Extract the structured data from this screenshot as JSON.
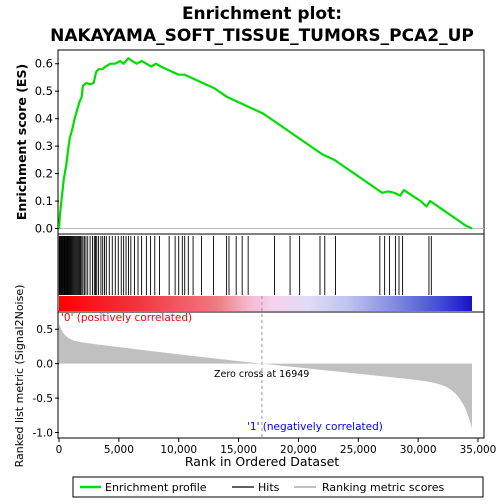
{
  "chart_data": {
    "type": "line",
    "title_line1": "Enrichment plot:",
    "title_line2": "NAKAYAMA_SOFT_TISSUE_TUMORS_PCA2_UP",
    "es_ylabel": "Enrichment score (ES)",
    "metric_ylabel": "Ranked list metric (Signal2Noise)",
    "xlabel": "Rank in Ordered Dataset",
    "xlim": [
      0,
      35500
    ],
    "es_ylim": [
      -0.02,
      0.65
    ],
    "metric_ylim": [
      -1.08,
      0.75
    ],
    "x_ticks": [
      0,
      5000,
      10000,
      15000,
      20000,
      25000,
      30000,
      35000
    ],
    "x_tick_labels": [
      "0",
      "5,000",
      "10,000",
      "15,000",
      "20,000",
      "25,000",
      "30,000",
      "35,000"
    ],
    "es_ticks": [
      0.0,
      0.1,
      0.2,
      0.3,
      0.4,
      0.5,
      0.6
    ],
    "es_tick_labels": [
      "0.0",
      "0.1",
      "0.2",
      "0.3",
      "0.4",
      "0.5",
      "0.6"
    ],
    "metric_ticks": [
      0.5,
      0.0,
      -0.5,
      -1.0
    ],
    "metric_tick_labels": [
      "0.5",
      "0.0",
      "-0.5",
      "-1.0"
    ],
    "total_genes": 34500,
    "zero_cross": 16949,
    "zero_cross_label": "Zero cross at 16949",
    "pos_label": "'0' (positively correlated)",
    "neg_label": "'1' (negatively correlated)",
    "enrichment_profile": [
      [
        0,
        0
      ],
      [
        100,
        0.06
      ],
      [
        250,
        0.12
      ],
      [
        400,
        0.18
      ],
      [
        600,
        0.23
      ],
      [
        800,
        0.3
      ],
      [
        900,
        0.33
      ],
      [
        1100,
        0.36
      ],
      [
        1300,
        0.4
      ],
      [
        1500,
        0.43
      ],
      [
        1700,
        0.46
      ],
      [
        1900,
        0.48
      ],
      [
        2000,
        0.52
      ],
      [
        2300,
        0.53
      ],
      [
        2600,
        0.525
      ],
      [
        2900,
        0.53
      ],
      [
        3100,
        0.57
      ],
      [
        3300,
        0.58
      ],
      [
        3600,
        0.58
      ],
      [
        3900,
        0.59
      ],
      [
        4300,
        0.6
      ],
      [
        4700,
        0.6
      ],
      [
        5100,
        0.61
      ],
      [
        5400,
        0.6
      ],
      [
        5800,
        0.62
      ],
      [
        6100,
        0.61
      ],
      [
        6500,
        0.6
      ],
      [
        6900,
        0.61
      ],
      [
        7300,
        0.6
      ],
      [
        7700,
        0.59
      ],
      [
        8100,
        0.6
      ],
      [
        8500,
        0.59
      ],
      [
        9000,
        0.58
      ],
      [
        9500,
        0.57
      ],
      [
        10000,
        0.56
      ],
      [
        10500,
        0.56
      ],
      [
        11000,
        0.55
      ],
      [
        12000,
        0.53
      ],
      [
        13000,
        0.51
      ],
      [
        14000,
        0.48
      ],
      [
        15000,
        0.46
      ],
      [
        16000,
        0.44
      ],
      [
        17000,
        0.42
      ],
      [
        18000,
        0.39
      ],
      [
        19000,
        0.36
      ],
      [
        20000,
        0.33
      ],
      [
        21000,
        0.3
      ],
      [
        22000,
        0.27
      ],
      [
        23000,
        0.25
      ],
      [
        24000,
        0.22
      ],
      [
        25000,
        0.19
      ],
      [
        26000,
        0.16
      ],
      [
        27000,
        0.13
      ],
      [
        27500,
        0.135
      ],
      [
        28000,
        0.13
      ],
      [
        28500,
        0.12
      ],
      [
        28800,
        0.14
      ],
      [
        29500,
        0.12
      ],
      [
        30200,
        0.1
      ],
      [
        30700,
        0.08
      ],
      [
        31000,
        0.1
      ],
      [
        32000,
        0.07
      ],
      [
        33000,
        0.04
      ],
      [
        34000,
        0.01
      ],
      [
        34500,
        0.0
      ]
    ],
    "hit_ranks": [
      20,
      70,
      130,
      190,
      250,
      310,
      370,
      430,
      490,
      550,
      610,
      670,
      730,
      790,
      850,
      920,
      1000,
      1080,
      1160,
      1240,
      1320,
      1400,
      1480,
      1560,
      1640,
      1720,
      1800,
      1900,
      2000,
      2120,
      2250,
      2400,
      2600,
      2800,
      2950,
      3050,
      3150,
      3300,
      3500,
      3650,
      3800,
      3950,
      4200,
      4450,
      4700,
      4950,
      5200,
      5400,
      5600,
      5800,
      6000,
      6300,
      6600,
      6900,
      7300,
      7650,
      8000,
      8400,
      9200,
      9700,
      10000,
      10300,
      10500,
      10800,
      11200,
      11900,
      12900,
      14000,
      14200,
      14800,
      15300,
      15800,
      18000,
      19300,
      20100,
      21800,
      22200,
      23100,
      26800,
      27200,
      27600,
      28100,
      28400,
      28700,
      30900,
      31100
    ]
  },
  "legend": {
    "profile": "Enrichment profile",
    "hits": "Hits",
    "ranking": "Ranking metric scores"
  },
  "colors": {
    "profile": "#00dd00",
    "hits": "#000000",
    "metric_fill": "#c0c0c0",
    "pos_text": "#ff0000",
    "neg_text": "#0000ff"
  }
}
